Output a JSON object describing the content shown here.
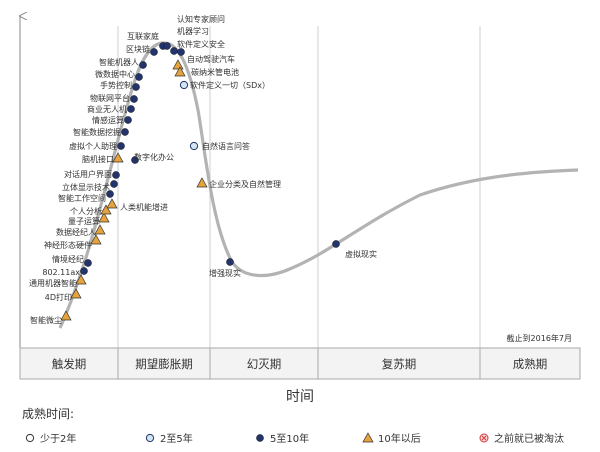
{
  "chart_data": {
    "type": "line",
    "note": "截止到2016年7月",
    "axis_title": "时间",
    "phases": [
      "触发期",
      "期望膨胀期",
      "幻灭期",
      "复苏期",
      "成熟期"
    ],
    "legend_title": "成熟时间:",
    "legend": [
      {
        "key": "lt2",
        "label": "少于2年"
      },
      {
        "key": "2to5",
        "label": "2至5年"
      },
      {
        "key": "5to10",
        "label": "5至10年"
      },
      {
        "key": "gt10",
        "label": "10年以后"
      },
      {
        "key": "obsolete",
        "label": "之前就已被淘汰"
      }
    ],
    "colors": {
      "dark": "#23336b",
      "light": "#d3e5f2",
      "triangle": "#e6a23c",
      "curve": "#b3b3b3",
      "obsolete": "#d83a3a"
    },
    "points": [
      {
        "label": "智能微尘",
        "m": "gt10",
        "side": "left"
      },
      {
        "label": "4D打印",
        "m": "gt10",
        "side": "left"
      },
      {
        "label": "通用机器智能",
        "m": "gt10",
        "side": "left"
      },
      {
        "label": "802.11ax",
        "m": "5to10",
        "side": "left"
      },
      {
        "label": "情境经纪",
        "m": "5to10",
        "side": "left"
      },
      {
        "label": "神经形态硬件",
        "m": "gt10",
        "side": "left"
      },
      {
        "label": "数据经纪人",
        "m": "gt10",
        "side": "left"
      },
      {
        "label": "量子运算",
        "m": "gt10",
        "side": "left"
      },
      {
        "label": "个人分析",
        "m": "gt10",
        "side": "left"
      },
      {
        "label": "智能工作空间",
        "m": "5to10",
        "side": "left"
      },
      {
        "label": "立体显示技术",
        "m": "5to10",
        "side": "left"
      },
      {
        "label": "对话用户界面",
        "m": "5to10",
        "side": "left"
      },
      {
        "label": "脑机接口",
        "m": "gt10",
        "side": "left"
      },
      {
        "label": "虚拟个人助理",
        "m": "5to10",
        "side": "left"
      },
      {
        "label": "智能数据挖掘",
        "m": "5to10",
        "side": "left"
      },
      {
        "label": "情感运算",
        "m": "5to10",
        "side": "left"
      },
      {
        "label": "商业无人机",
        "m": "5to10",
        "side": "left"
      },
      {
        "label": "物联网平台",
        "m": "5to10",
        "side": "left"
      },
      {
        "label": "手势控制",
        "m": "5to10",
        "side": "left"
      },
      {
        "label": "微数据中心",
        "m": "5to10",
        "side": "left"
      },
      {
        "label": "智能机器人",
        "m": "5to10",
        "side": "left"
      },
      {
        "label": "区块链",
        "m": "5to10",
        "side": "left"
      },
      {
        "label": "互联家庭",
        "m": "5to10",
        "side": "left"
      },
      {
        "label": "认知专家顾问",
        "m": "5to10",
        "side": "right"
      },
      {
        "label": "机器学习",
        "m": "5to10",
        "side": "right"
      },
      {
        "label": "软件定义安全",
        "m": "5to10",
        "side": "right"
      },
      {
        "label": "自动驾驶汽车",
        "m": "gt10",
        "side": "right"
      },
      {
        "label": "碳纳米管电池",
        "m": "gt10",
        "side": "right"
      },
      {
        "label": "软件定义一切（SDx）",
        "m": "2to5",
        "side": "right"
      },
      {
        "label": "人类机能增进",
        "m": "gt10",
        "side": "right"
      },
      {
        "label": "数字化办公",
        "m": "5to10",
        "side": "right"
      },
      {
        "label": "自然语言问答",
        "m": "2to5",
        "side": "right"
      },
      {
        "label": "企业分类及自然管理",
        "m": "gt10",
        "side": "right"
      },
      {
        "label": "增强现实",
        "m": "5to10",
        "side": "below"
      },
      {
        "label": "虚拟现实",
        "m": "5to10",
        "side": "right"
      }
    ]
  }
}
